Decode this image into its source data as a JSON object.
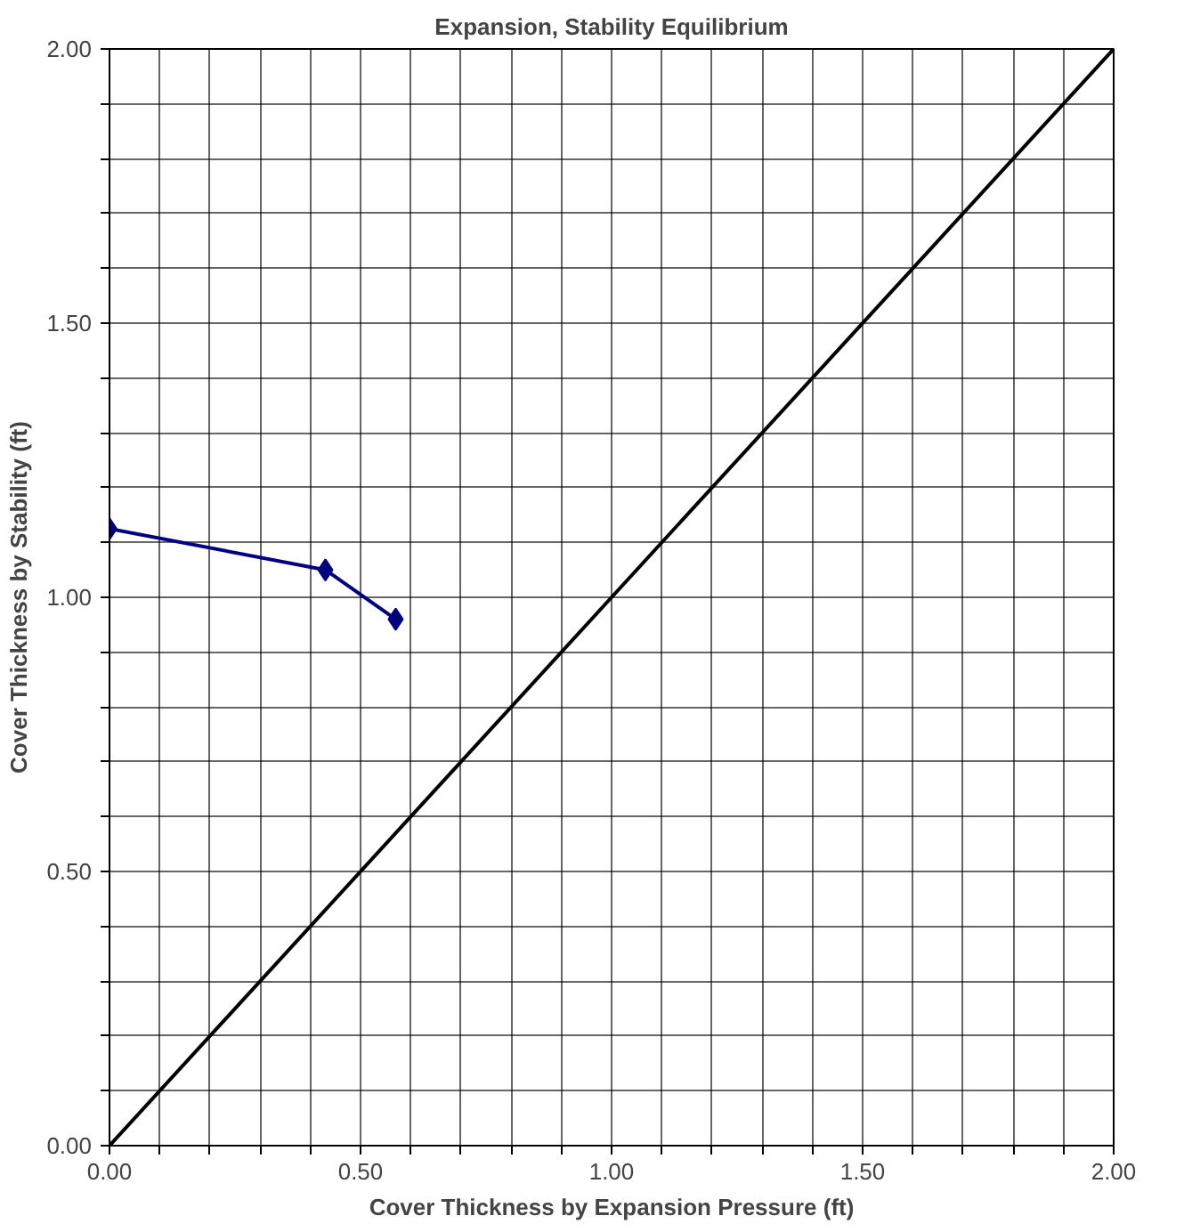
{
  "chart_data": {
    "type": "line",
    "title": "Expansion, Stability Equilibrium",
    "xlabel": "Cover Thickness by Expansion Pressure (ft)",
    "ylabel": "Cover Thickness by Stability (ft)",
    "x": [
      0,
      0.43,
      0.57
    ],
    "series": [
      {
        "color": "#000080",
        "values": [
          1.125,
          1.05,
          0.96
        ],
        "marker": "diamond"
      },
      {
        "color": "#000000",
        "x": [
          0,
          2
        ],
        "values": [
          0,
          2
        ],
        "marker": "none"
      }
    ],
    "xlim": [
      0,
      2
    ],
    "ylim": [
      0,
      2
    ],
    "xticks": [
      {
        "value": 0,
        "label": "0.00"
      },
      {
        "value": 0.1,
        "label": null
      },
      {
        "value": 0.2,
        "label": null
      },
      {
        "value": 0.3,
        "label": null
      },
      {
        "value": 0.4,
        "label": null
      },
      {
        "value": 0.5,
        "label": "0.50"
      },
      {
        "value": 0.6,
        "label": null
      },
      {
        "value": 0.7,
        "label": null
      },
      {
        "value": 0.8,
        "label": null
      },
      {
        "value": 0.9,
        "label": null
      },
      {
        "value": 1,
        "label": "1.00"
      },
      {
        "value": 1.1,
        "label": null
      },
      {
        "value": 1.2,
        "label": null
      },
      {
        "value": 1.3,
        "label": null
      },
      {
        "value": 1.4,
        "label": null
      },
      {
        "value": 1.5,
        "label": "1.50"
      },
      {
        "value": 1.6,
        "label": null
      },
      {
        "value": 1.7,
        "label": null
      },
      {
        "value": 1.8,
        "label": null
      },
      {
        "value": 1.9,
        "label": null
      },
      {
        "value": 2,
        "label": "2.00"
      }
    ],
    "yticks": [
      {
        "value": 0,
        "label": "0.00"
      },
      {
        "value": 0.1,
        "label": null
      },
      {
        "value": 0.2,
        "label": null
      },
      {
        "value": 0.3,
        "label": null
      },
      {
        "value": 0.4,
        "label": null
      },
      {
        "value": 0.5,
        "label": "0.50"
      },
      {
        "value": 0.6,
        "label": null
      },
      {
        "value": 0.7,
        "label": null
      },
      {
        "value": 0.8,
        "label": null
      },
      {
        "value": 0.9,
        "label": null
      },
      {
        "value": 1,
        "label": "1.00"
      },
      {
        "value": 1.1,
        "label": null
      },
      {
        "value": 1.2,
        "label": null
      },
      {
        "value": 1.3,
        "label": null
      },
      {
        "value": 1.4,
        "label": null
      },
      {
        "value": 1.5,
        "label": "1.50"
      },
      {
        "value": 1.6,
        "label": null
      },
      {
        "value": 1.7,
        "label": null
      },
      {
        "value": 1.8,
        "label": null
      },
      {
        "value": 1.9,
        "label": null
      },
      {
        "value": 2,
        "label": "2.00"
      }
    ],
    "grid": true,
    "line_style": "solid"
  }
}
